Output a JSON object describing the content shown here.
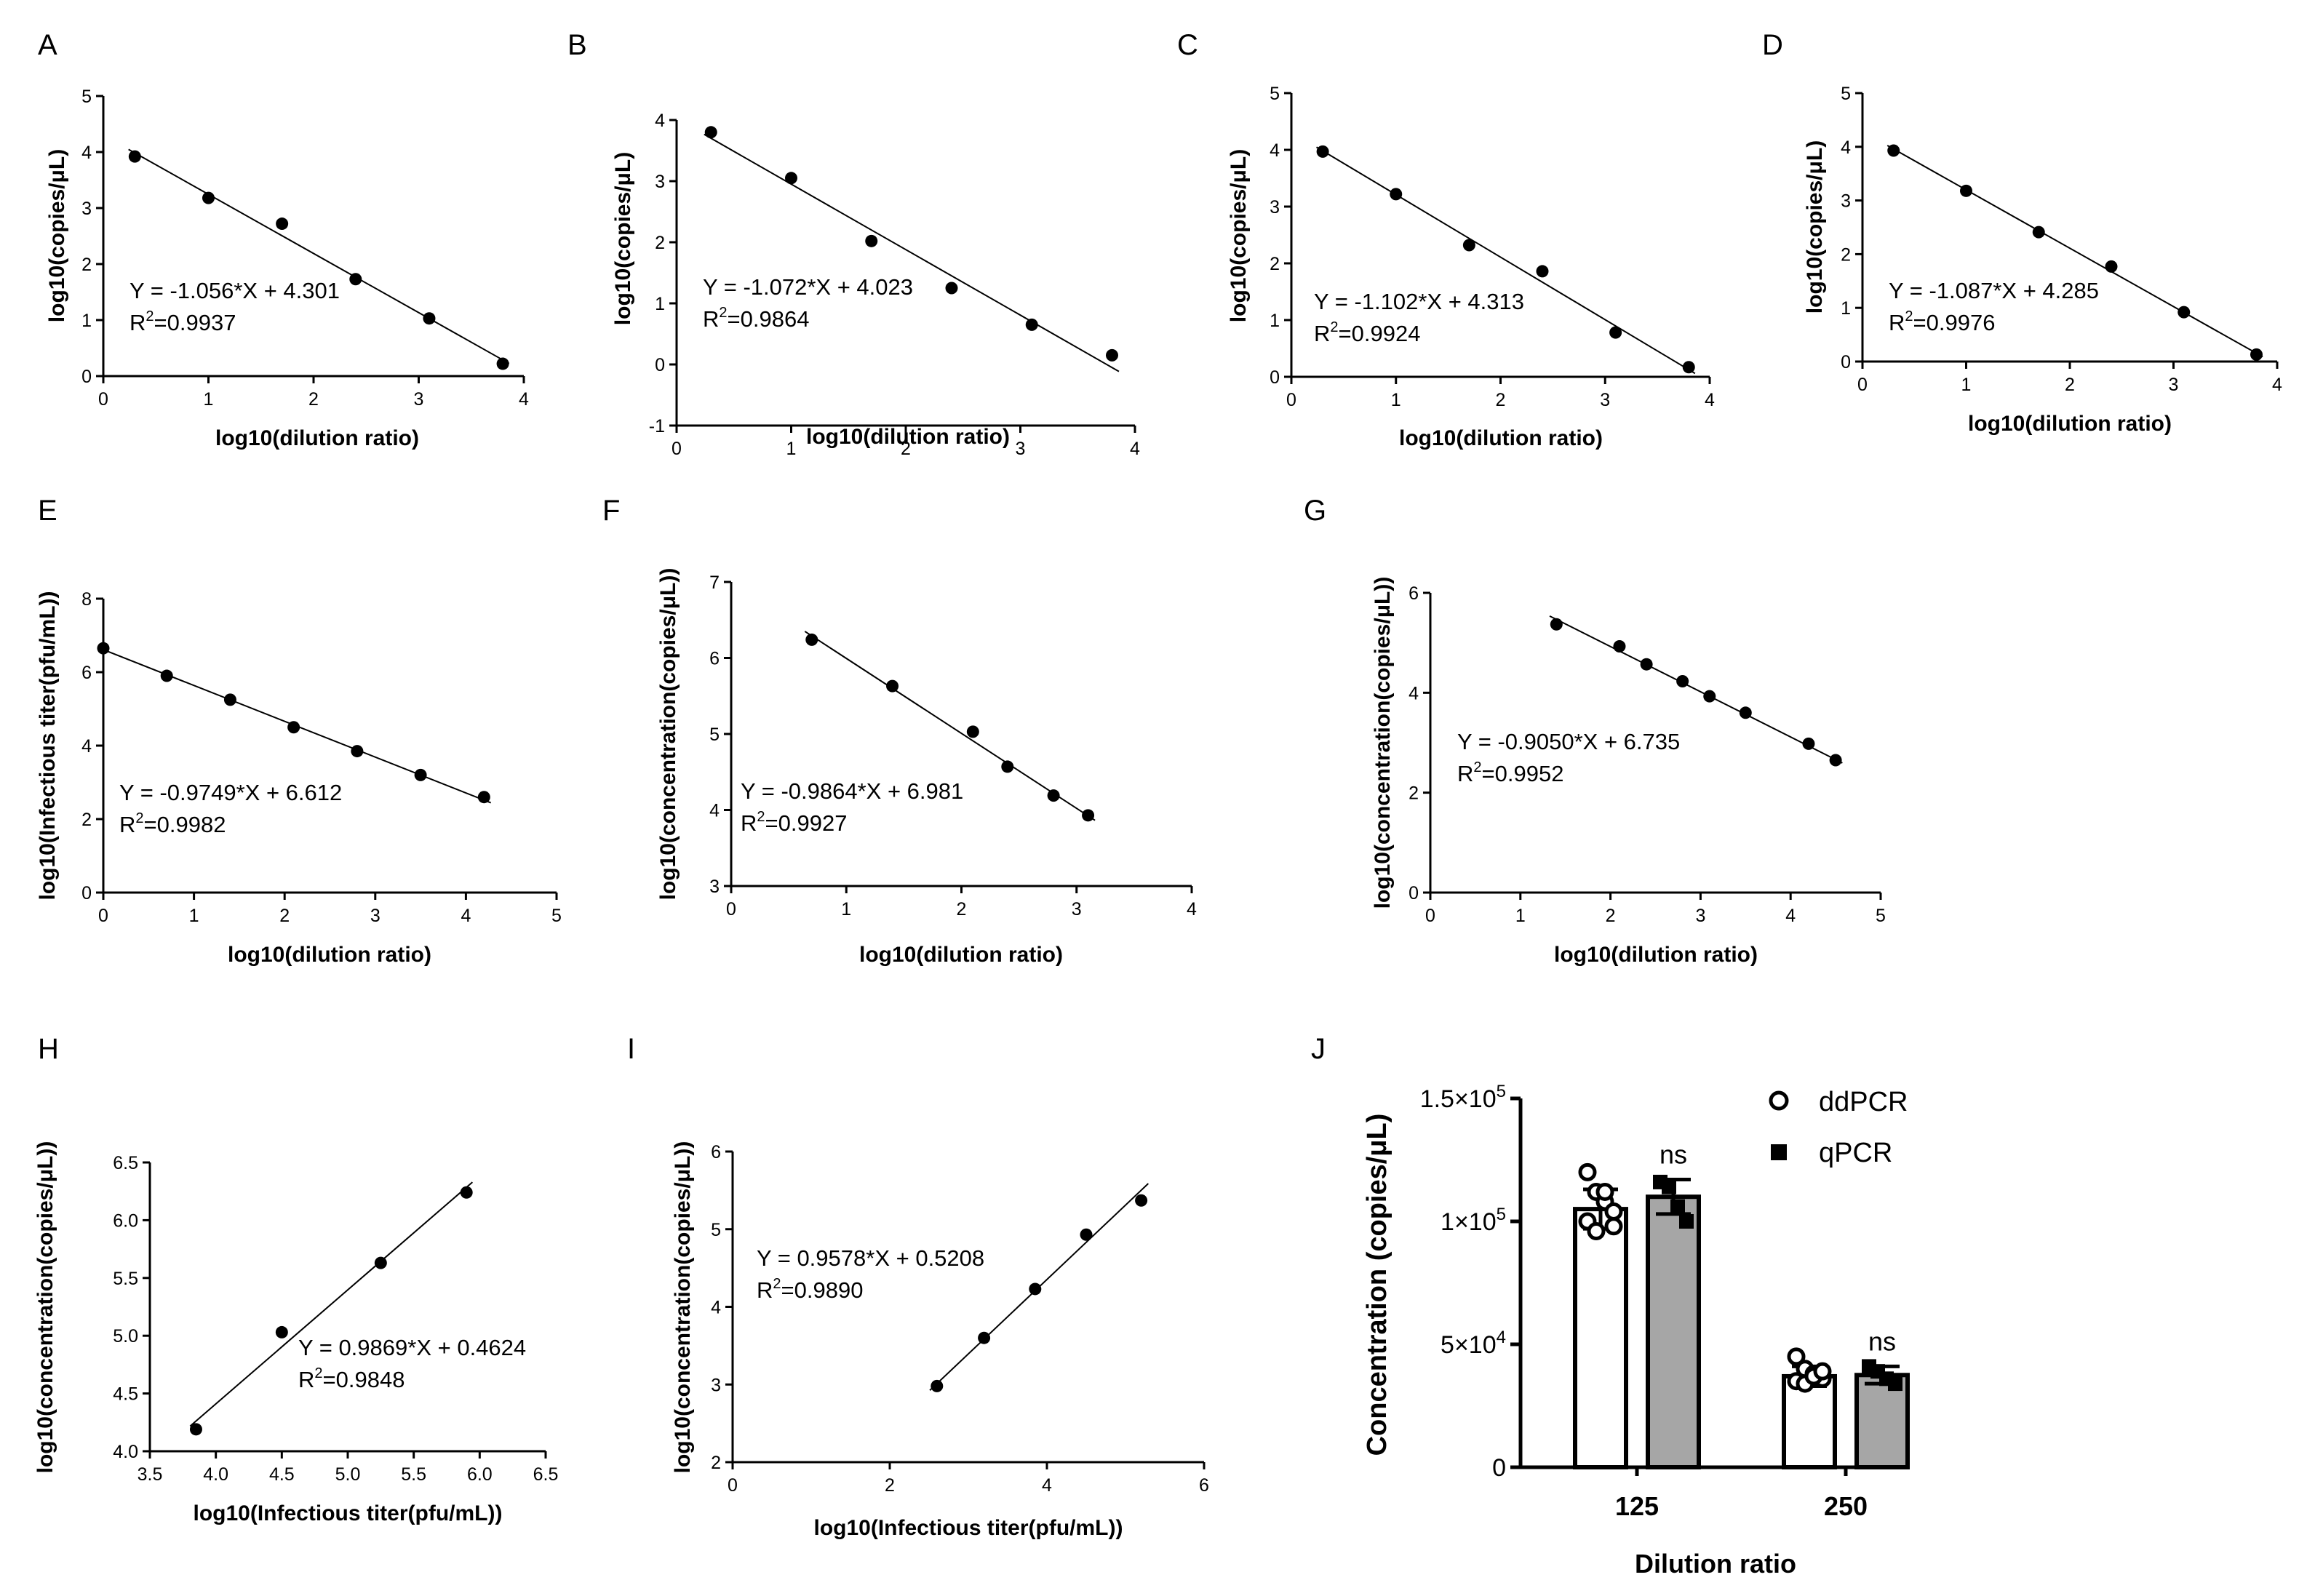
{
  "chart_data": [
    {
      "panel": "A",
      "type": "scatter",
      "xlabel": "log10(dilution ratio)",
      "ylabel": "log10(copies/μL)",
      "xlim": [
        0,
        4
      ],
      "ylim": [
        0,
        5
      ],
      "xticks": [
        "0",
        "1",
        "2",
        "3",
        "4"
      ],
      "yticks": [
        "0",
        "1",
        "2",
        "3",
        "4",
        "5"
      ],
      "x": [
        0.3,
        1.0,
        1.7,
        2.4,
        3.1,
        3.8
      ],
      "y": [
        3.92,
        3.18,
        2.72,
        1.73,
        1.03,
        0.22
      ],
      "fit": {
        "slope": -1.056,
        "intercept": 4.301
      },
      "equation": "Y = -1.056*X + 4.301",
      "r2_label": "R",
      "r2_value": "=0.9937"
    },
    {
      "panel": "B",
      "type": "scatter",
      "xlabel": "log10(dilution ratio)",
      "ylabel": "log10(copies/μL)",
      "xlim": [
        0,
        4
      ],
      "ylim": [
        -1,
        4
      ],
      "xticks": [
        "0",
        "1",
        "2",
        "3",
        "4"
      ],
      "yticks": [
        "-1",
        "0",
        "1",
        "2",
        "3",
        "4"
      ],
      "x": [
        0.3,
        1.0,
        1.7,
        2.4,
        3.1,
        3.8
      ],
      "y": [
        3.8,
        3.05,
        2.02,
        1.25,
        0.65,
        0.15
      ],
      "fit": {
        "slope": -1.072,
        "intercept": 4.023
      },
      "equation": "Y = -1.072*X + 4.023",
      "r2_label": "R",
      "r2_value": "=0.9864"
    },
    {
      "panel": "C",
      "type": "scatter",
      "xlabel": "log10(dilution ratio)",
      "ylabel": "log10(copies/μL)",
      "xlim": [
        0,
        4
      ],
      "ylim": [
        0,
        5
      ],
      "xticks": [
        "0",
        "1",
        "2",
        "3",
        "4"
      ],
      "yticks": [
        "0",
        "1",
        "2",
        "3",
        "4",
        "5"
      ],
      "x": [
        0.3,
        1.0,
        1.7,
        2.4,
        3.1,
        3.8
      ],
      "y": [
        3.97,
        3.22,
        2.32,
        1.86,
        0.78,
        0.17
      ],
      "fit": {
        "slope": -1.102,
        "intercept": 4.313
      },
      "equation": "Y = -1.102*X + 4.313",
      "r2_label": "R",
      "r2_value": "=0.9924"
    },
    {
      "panel": "D",
      "type": "scatter",
      "xlabel": "log10(dilution ratio)",
      "ylabel": "log10(copies/μL)",
      "xlim": [
        0,
        4
      ],
      "ylim": [
        0,
        5
      ],
      "xticks": [
        "0",
        "1",
        "2",
        "3",
        "4"
      ],
      "yticks": [
        "0",
        "1",
        "2",
        "3",
        "4",
        "5"
      ],
      "x": [
        0.3,
        1.0,
        1.7,
        2.4,
        3.1,
        3.8
      ],
      "y": [
        3.93,
        3.18,
        2.41,
        1.77,
        0.92,
        0.13
      ],
      "fit": {
        "slope": -1.087,
        "intercept": 4.285
      },
      "equation": "Y = -1.087*X + 4.285",
      "r2_label": "R",
      "r2_value": "=0.9976"
    },
    {
      "panel": "E",
      "type": "scatter",
      "xlabel": "log10(dilution ratio)",
      "ylabel": "log10(Infectious titer(pfu/mL))",
      "xlim": [
        0,
        5
      ],
      "ylim": [
        0,
        8
      ],
      "xticks": [
        "0",
        "1",
        "2",
        "3",
        "4",
        "5"
      ],
      "yticks": [
        "0",
        "2",
        "4",
        "6",
        "8"
      ],
      "x": [
        0.0,
        0.7,
        1.4,
        2.1,
        2.8,
        3.5,
        4.2
      ],
      "y": [
        6.65,
        5.9,
        5.25,
        4.5,
        3.85,
        3.2,
        2.6
      ],
      "fit": {
        "slope": -0.9749,
        "intercept": 6.612
      },
      "equation": "Y = -0.9749*X + 6.612",
      "r2_label": "R",
      "r2_value": "=0.9982"
    },
    {
      "panel": "F",
      "type": "scatter",
      "xlabel": "log10(dilution ratio)",
      "ylabel": "log10(concentration(copies/μL))",
      "xlim": [
        0,
        4
      ],
      "ylim": [
        3,
        7
      ],
      "xticks": [
        "0",
        "1",
        "2",
        "3",
        "4"
      ],
      "yticks": [
        "3",
        "4",
        "5",
        "6",
        "7"
      ],
      "x": [
        0.7,
        1.4,
        2.1,
        2.4,
        2.8,
        3.1
      ],
      "y": [
        6.24,
        5.63,
        5.03,
        4.57,
        4.19,
        3.93
      ],
      "fit": {
        "slope": -0.9864,
        "intercept": 6.981
      },
      "equation": "Y = -0.9864*X + 6.981",
      "r2_label": "R",
      "r2_value": "=0.9927"
    },
    {
      "panel": "G",
      "type": "scatter",
      "xlabel": "log10(dilution ratio)",
      "ylabel": "log10(concentration(copies/μL))",
      "xlim": [
        0,
        5
      ],
      "ylim": [
        0,
        6
      ],
      "xticks": [
        "0",
        "1",
        "2",
        "3",
        "4",
        "5"
      ],
      "yticks": [
        "0",
        "2",
        "4",
        "6"
      ],
      "x": [
        1.4,
        2.1,
        2.4,
        2.8,
        3.1,
        3.5,
        4.2,
        4.5
      ],
      "y": [
        5.37,
        4.93,
        4.57,
        4.23,
        3.93,
        3.6,
        2.98,
        2.65
      ],
      "fit": {
        "slope": -0.905,
        "intercept": 6.735
      },
      "equation": "Y = -0.9050*X + 6.735",
      "r2_label": "R",
      "r2_value": "=0.9952"
    },
    {
      "panel": "H",
      "type": "scatter",
      "xlabel": "log10(Infectious titer(pfu/mL))",
      "ylabel": "log10(concentration(copies/μL))",
      "xlim": [
        3.5,
        6.5
      ],
      "ylim": [
        4.0,
        6.5
      ],
      "xticks": [
        "3.5",
        "4.0",
        "4.5",
        "5.0",
        "5.5",
        "6.0",
        "6.5"
      ],
      "yticks": [
        "4.0",
        "4.5",
        "5.0",
        "5.5",
        "6.0",
        "6.5"
      ],
      "x": [
        3.85,
        4.5,
        5.25,
        5.9
      ],
      "y": [
        4.19,
        5.03,
        5.63,
        6.24
      ],
      "fit": {
        "slope": 0.9869,
        "intercept": 0.4624
      },
      "equation": "Y = 0.9869*X + 0.4624",
      "r2_label": "R",
      "r2_value": "=0.9848"
    },
    {
      "panel": "I",
      "type": "scatter",
      "xlabel": "log10(Infectious titer(pfu/mL))",
      "ylabel": "log10(concentration(copies/μL))",
      "xlim": [
        0,
        6
      ],
      "ylim": [
        2,
        6
      ],
      "xticks": [
        "0",
        "2",
        "4",
        "6"
      ],
      "yticks": [
        "2",
        "3",
        "4",
        "5",
        "6"
      ],
      "x": [
        2.6,
        3.2,
        3.85,
        4.5,
        5.2
      ],
      "y": [
        2.98,
        3.6,
        4.23,
        4.93,
        5.37
      ],
      "fit": {
        "slope": 0.9578,
        "intercept": 0.5208
      },
      "equation": "Y = 0.9578*X + 0.5208",
      "r2_label": "R",
      "r2_value": "=0.9890"
    },
    {
      "panel": "J",
      "type": "bar",
      "xlabel": "Dilution ratio",
      "ylabel": "Concentration (copies/μL)",
      "ylim": [
        0,
        150000
      ],
      "yticks": [
        {
          "base": "0",
          "exp": ""
        },
        {
          "base": "5×10",
          "exp": "4"
        },
        {
          "base": "1×10",
          "exp": "5"
        },
        {
          "base": "1.5×10",
          "exp": "5"
        }
      ],
      "categories": [
        "125",
        "250"
      ],
      "series": [
        {
          "name": "ddPCR",
          "marker": "open-circle",
          "color": "#ffffff",
          "values": [
            105000,
            37000
          ],
          "errors": [
            8000,
            4000
          ],
          "points": [
            [
              120000,
              112000,
              108000,
              104000,
              100000,
              96000,
              112000,
              98000
            ],
            [
              45000,
              40000,
              38000,
              36000,
              35000,
              34000,
              37000,
              39000
            ]
          ]
        },
        {
          "name": "qPCR",
          "marker": "filled-square",
          "color": "#a6a6a6",
          "values": [
            110000,
            37500
          ],
          "errors": [
            7000,
            3500
          ],
          "points": [
            [
              116000,
              114000,
              106000,
              100000
            ],
            [
              41000,
              39000,
              36000,
              34000
            ]
          ]
        }
      ],
      "annotations": [
        "ns",
        "ns"
      ]
    }
  ]
}
